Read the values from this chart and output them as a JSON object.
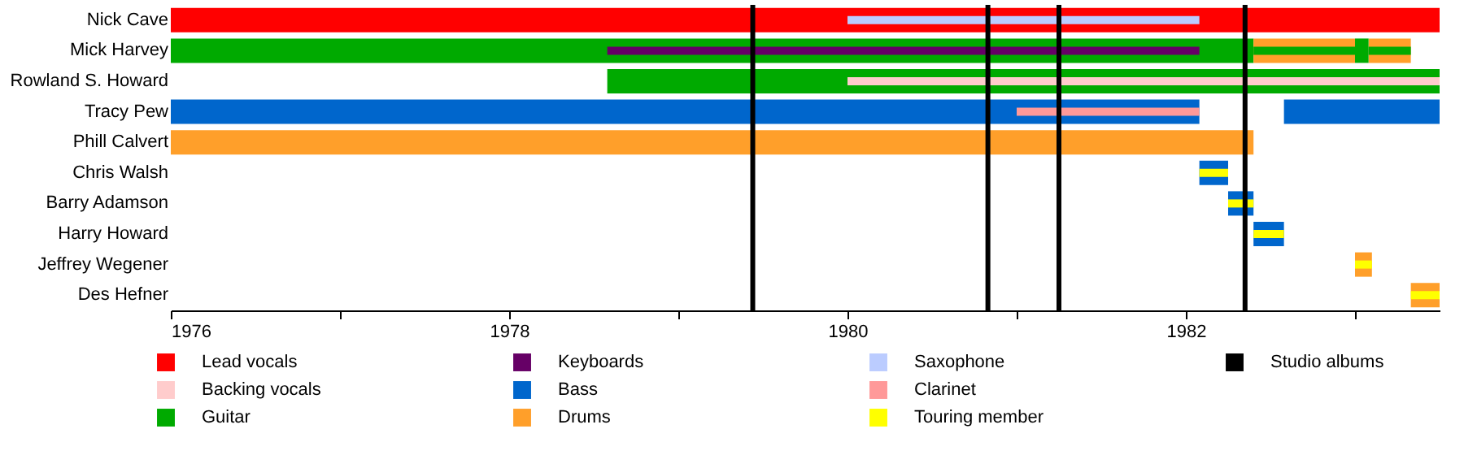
{
  "chart_data": {
    "type": "bar",
    "orientation": "horizontal",
    "legend": "bottom",
    "categories": [
      "Nick Cave",
      "Mick Harvey",
      "Rowland S. Howard",
      "Tracy Pew",
      "Phill Calvert",
      "Chris Walsh",
      "Barry Adamson",
      "Harry Howard",
      "Jeffrey Wegener",
      "Des Hefner"
    ],
    "xlim": [
      1976,
      1983.5
    ],
    "xticks": [
      1976,
      {
        "value": 1977,
        "label": null
      },
      1978,
      {
        "value": 1979,
        "label": null
      },
      1980,
      {
        "value": 1981,
        "label": null
      },
      1982,
      {
        "value": 1983,
        "label": null
      }
    ],
    "series": [
      {
        "name": "Lead vocals",
        "color": "#ff0000",
        "base": [
          1976,
          null,
          null,
          null,
          null,
          null,
          null,
          null,
          null,
          null
        ],
        "values": [
          7.5,
          null,
          null,
          null,
          null,
          null,
          null,
          null,
          null,
          null
        ]
      },
      {
        "name": "Backing vocals",
        "color": "#ffcccc",
        "base": [
          null,
          null,
          1980,
          null,
          null,
          null,
          null,
          null,
          null,
          null
        ],
        "values": [
          null,
          null,
          3.5,
          null,
          null,
          null,
          null,
          null,
          null,
          null
        ]
      },
      {
        "name": "Guitar",
        "color": "#00aa00",
        "base": [
          null,
          1976,
          1978.58,
          null,
          null,
          null,
          null,
          null,
          null,
          null
        ],
        "values": [
          null,
          6.4,
          4.92,
          null,
          null,
          null,
          null,
          null,
          null,
          null
        ]
      },
      {
        "name": "Keyboards",
        "color": "#660066",
        "base": [
          null,
          1978.58,
          null,
          null,
          null,
          null,
          null,
          null,
          null,
          null
        ],
        "values": [
          null,
          3.5,
          null,
          null,
          null,
          null,
          null,
          null,
          null,
          null
        ]
      },
      {
        "name": "Bass",
        "color": "#0066cc",
        "base": [
          null,
          null,
          null,
          1976,
          null,
          1982.08,
          1982.25,
          1982.4,
          null,
          null
        ],
        "values": [
          null,
          null,
          null,
          6.08,
          null,
          0.17,
          0.15,
          0.18,
          null,
          null
        ]
      },
      {
        "name": "Drums",
        "color": "#ff9f2a",
        "base": [
          null,
          1982.4,
          null,
          null,
          1976,
          null,
          null,
          null,
          1983.0,
          1983.33
        ],
        "values": [
          null,
          0.6,
          null,
          null,
          6.4,
          null,
          null,
          null,
          0.1,
          0.17
        ]
      },
      {
        "name": "Saxophone",
        "color": "#bbccff",
        "base": [
          1980,
          null,
          null,
          null,
          null,
          null,
          null,
          null,
          null,
          null
        ],
        "values": [
          2.08,
          null,
          null,
          null,
          null,
          null,
          null,
          null,
          null,
          null
        ]
      },
      {
        "name": "Clarinet",
        "color": "#ff9999",
        "base": [
          null,
          null,
          null,
          1981.0,
          null,
          null,
          null,
          null,
          null,
          null
        ],
        "values": [
          null,
          null,
          null,
          1.08,
          null,
          null,
          null,
          null,
          null,
          null
        ]
      },
      {
        "name": "Touring member",
        "color": "#ffff00",
        "base": [
          null,
          null,
          null,
          null,
          null,
          1982.08,
          1982.25,
          1982.4,
          1983.0,
          1983.33
        ],
        "values": [
          null,
          null,
          null,
          null,
          null,
          0.17,
          0.15,
          0.18,
          0.1,
          0.17
        ]
      },
      {
        "color": "#0066cc",
        "base": [
          null,
          null,
          null,
          1982.58,
          null,
          null,
          null,
          null,
          null,
          null
        ],
        "values": [
          null,
          null,
          null,
          0.92,
          null,
          null,
          null,
          null,
          null,
          null
        ]
      },
      {
        "color": "#ff9f2a",
        "base": [
          null,
          1983.08,
          null,
          null,
          null,
          null,
          null,
          null,
          null,
          null
        ],
        "values": [
          null,
          0.25,
          null,
          null,
          null,
          null,
          null,
          null,
          null,
          null
        ]
      },
      {
        "color": "#00aa00",
        "base": [
          null,
          1982.4,
          null,
          null,
          null,
          null,
          null,
          null,
          null,
          null
        ],
        "values": [
          null,
          0.6,
          null,
          null,
          null,
          null,
          null,
          null,
          null,
          null
        ]
      },
      {
        "color": "#00aa00",
        "base": [
          null,
          1983.08,
          null,
          null,
          null,
          null,
          null,
          null,
          null,
          null
        ],
        "values": [
          null,
          0.25,
          null,
          null,
          null,
          null,
          null,
          null,
          null,
          null
        ]
      },
      {
        "color": "#00aa00",
        "base": [
          null,
          1983.0,
          null,
          null,
          null,
          null,
          null,
          null,
          null,
          null
        ],
        "values": [
          null,
          0.08,
          null,
          null,
          null,
          null,
          null,
          null,
          null,
          null
        ]
      }
    ],
    "ref_lines": [
      {
        "axis": "x",
        "value": 1979.44,
        "label": "Studio albums",
        "color": "#000000"
      },
      {
        "axis": "x",
        "value": 1980.83,
        "color": "#000000"
      },
      {
        "axis": "x",
        "value": 1981.25,
        "color": "#000000"
      },
      {
        "axis": "x",
        "value": 1982.35,
        "color": "#000000"
      }
    ]
  }
}
